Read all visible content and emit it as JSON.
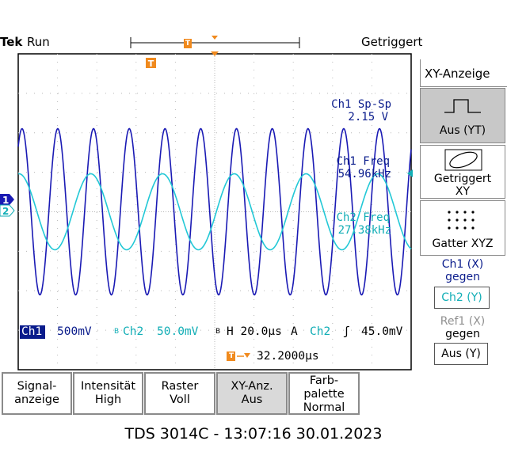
{
  "header": {
    "brand": "Tek",
    "run_state": "Run",
    "trigger_status": "Getriggert",
    "trigger_marker": "T"
  },
  "side_menu": {
    "title": "XY-Anzeige",
    "buttons": [
      {
        "label": "Aus (YT)",
        "icon": "yt-pulse-icon",
        "selected": true
      },
      {
        "label_line1": "Getriggert",
        "label_line2": "XY",
        "icon": "xy-ellipse-icon"
      },
      {
        "label": "Gatter XYZ",
        "icon": "dot-grid-icon"
      }
    ],
    "ch1_against": {
      "line1": "Ch1 (X)",
      "line2": "gegen",
      "value": "Ch2 (Y)"
    },
    "ref1_against": {
      "line1": "Ref1 (X)",
      "line2": "gegen",
      "value": "Aus (Y)"
    }
  },
  "measurements": {
    "ch1_pkpk_label": "Ch1 Sp-Sp",
    "ch1_pkpk_value": "2.15 V",
    "ch1_freq_label": "Ch1 Freq",
    "ch1_freq_value": "54.96kHz",
    "ch2_freq_label": "Ch2 Freq",
    "ch2_freq_value": "27.38kHz"
  },
  "channel_markers": {
    "ch1": "1",
    "ch2": "2"
  },
  "status_line": {
    "ch1_label": "Ch1",
    "ch1_scale": "500mV",
    "bw_mark": "B",
    "ch2_label": "Ch2",
    "ch2_scale": "50.0mV",
    "horizontal": "H 20.0µs",
    "trigger_mode": "A",
    "trigger_source": "Ch2",
    "trigger_slope": "ʃ",
    "trigger_level": "45.0mV",
    "trigger_position": "32.2000µs"
  },
  "softkeys": [
    {
      "line1": "Signal-",
      "line2": "anzeige"
    },
    {
      "line1": "Intensität",
      "line2": "High"
    },
    {
      "line1": "Raster",
      "line2": "Voll"
    },
    {
      "line1": "XY-Anz.",
      "line2": "Aus",
      "active": true
    },
    {
      "line1": "Farb-",
      "line2": "palette",
      "line3": "Normal"
    }
  ],
  "footer": "TDS 3014C - 13:07:16   30.01.2023",
  "colors": {
    "ch1": "#1a1ab4",
    "ch2": "#22c8d6",
    "ch1_text": "#0a1c8c",
    "ch2_text": "#12aeb6",
    "trigger": "#f08a1e",
    "grid": "#b8b8b8"
  },
  "chart_data": {
    "type": "line",
    "series": [
      {
        "name": "Ch1",
        "frequency_khz": 54.96,
        "peak_to_peak_v": 2.15
      },
      {
        "name": "Ch2",
        "frequency_khz": 27.38
      }
    ],
    "time_per_div_us": 20.0
  }
}
